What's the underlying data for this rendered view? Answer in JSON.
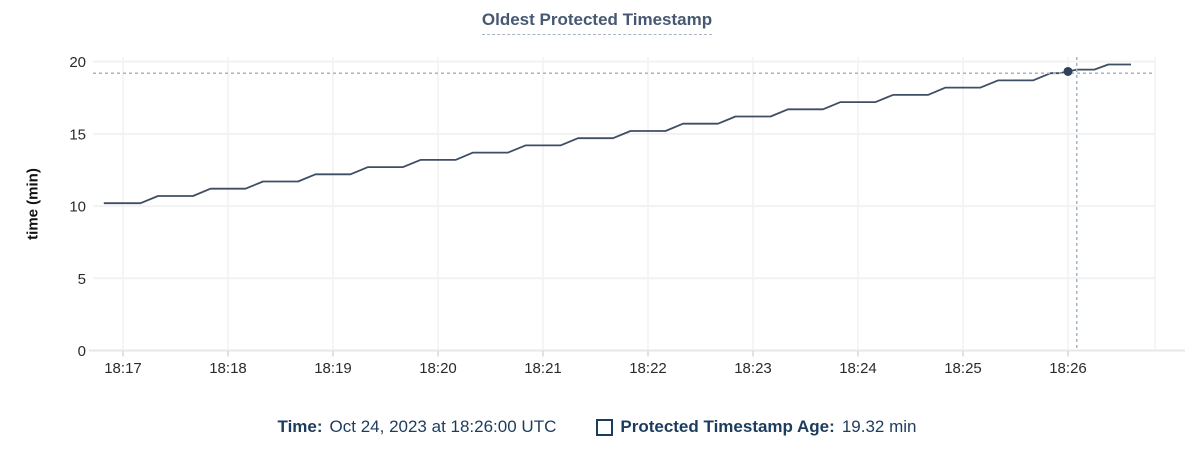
{
  "title": "Oldest Protected Timestamp",
  "legend": {
    "time_label": "Time:",
    "time_value": "Oct 24, 2023 at 18:26:00 UTC",
    "series_label": "Protected Timestamp Age:",
    "series_value": "19.32 min"
  },
  "colors": {
    "line": "#3e4e63",
    "dot": "#2f4259",
    "title": "#475872",
    "legend_text": "#1c3c5f",
    "crosshair": "#a3b6c6",
    "gridline": "#f2f2f2",
    "axis_line": "#e7e7e7",
    "tick_text": "#2b2b2b"
  },
  "chart_data": {
    "type": "line",
    "title": "Oldest Protected Timestamp",
    "xlabel": "",
    "ylabel": "time (min)",
    "ylim": [
      0,
      20
    ],
    "y_ticks": [
      0,
      5,
      10,
      15,
      20
    ],
    "x_ticks": [
      "18:17",
      "18:18",
      "18:19",
      "18:20",
      "18:21",
      "18:22",
      "18:23",
      "18:24",
      "18:25",
      "18:26"
    ],
    "x_tick_interval_seconds": 60,
    "t0_label": "18:17:00",
    "t_unit": "seconds after 18:17:00 UTC",
    "grid": true,
    "legend_position": "bottom",
    "series": [
      {
        "name": "Protected Timestamp Age",
        "unit": "min",
        "points": [
          [
            -11,
            10.2
          ],
          [
            10,
            10.2
          ],
          [
            20,
            10.7
          ],
          [
            40,
            10.7
          ],
          [
            50,
            11.2
          ],
          [
            70,
            11.2
          ],
          [
            80,
            11.7
          ],
          [
            100,
            11.7
          ],
          [
            110,
            12.2
          ],
          [
            130,
            12.2
          ],
          [
            140,
            12.7
          ],
          [
            160,
            12.7
          ],
          [
            170,
            13.2
          ],
          [
            190,
            13.2
          ],
          [
            200,
            13.7
          ],
          [
            220,
            13.7
          ],
          [
            230,
            14.2
          ],
          [
            250,
            14.2
          ],
          [
            260,
            14.7
          ],
          [
            280,
            14.7
          ],
          [
            290,
            15.2
          ],
          [
            310,
            15.2
          ],
          [
            320,
            15.7
          ],
          [
            340,
            15.7
          ],
          [
            350,
            16.2
          ],
          [
            370,
            16.2
          ],
          [
            380,
            16.7
          ],
          [
            400,
            16.7
          ],
          [
            410,
            17.2
          ],
          [
            430,
            17.2
          ],
          [
            440,
            17.7
          ],
          [
            460,
            17.7
          ],
          [
            470,
            18.2
          ],
          [
            490,
            18.2
          ],
          [
            500,
            18.7
          ],
          [
            520,
            18.7
          ],
          [
            530,
            19.2
          ],
          [
            535,
            19.2
          ],
          [
            545,
            19.45
          ],
          [
            555,
            19.45
          ],
          [
            563,
            19.8
          ],
          [
            576,
            19.8
          ]
        ]
      }
    ],
    "crosshair": {
      "point_time": "18:26:00",
      "point_t": 540,
      "point_value_min": 19.32,
      "mouse_t": 545,
      "mouse_value_min": 19.2
    }
  }
}
